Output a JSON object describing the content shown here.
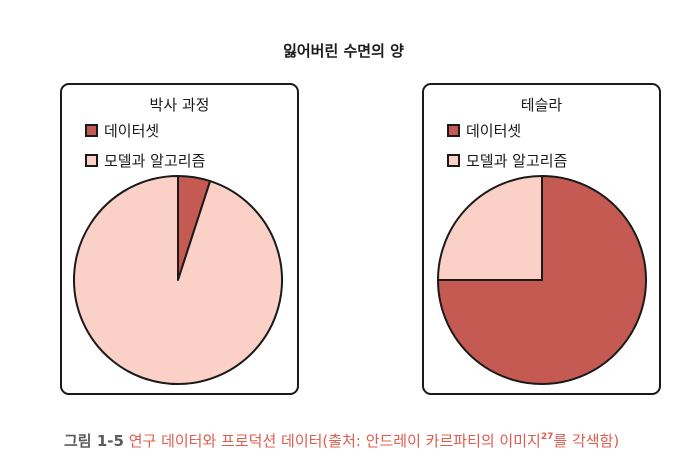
{
  "title": "잃어버린 수면의 양",
  "colors": {
    "dataset": "#c45a51",
    "model": "#fbd0c7",
    "stroke": "#1a1a1a"
  },
  "chart_data": [
    {
      "type": "pie",
      "title": "박사 과정",
      "labels": [
        "데이터셋",
        "모델과 알고리즘"
      ],
      "values": [
        5,
        95
      ]
    },
    {
      "type": "pie",
      "title": "테슬라",
      "labels": [
        "데이터셋",
        "모델과 알고리즘"
      ],
      "values": [
        75,
        25
      ]
    }
  ],
  "caption": {
    "lead": "그림 1-5",
    "text": "연구 데이터와 프로덕션 데이터(출처: 안드레이 카르파티의 이미지",
    "ref": "27",
    "tail": "를 각색함)"
  }
}
